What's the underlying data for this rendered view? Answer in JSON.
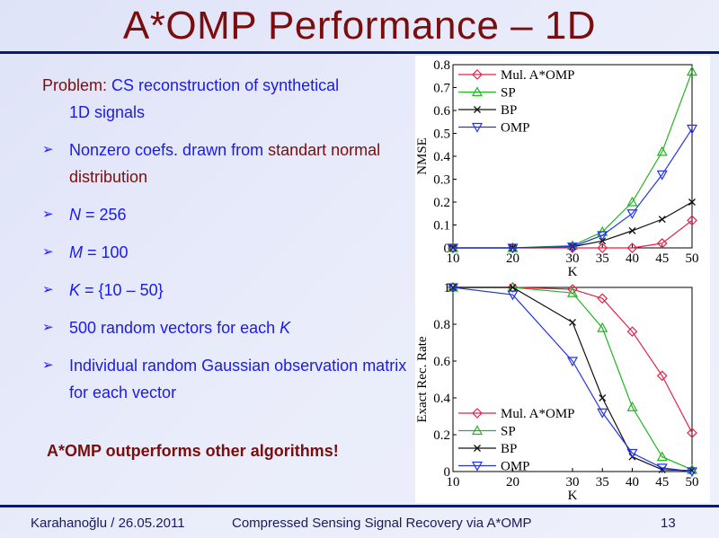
{
  "slide": {
    "title": "A*OMP Performance – 1D",
    "problem": [
      {
        "text": "Problem: ",
        "color": "#7a0e0e"
      },
      {
        "text": "CS reconstruction of synthetical",
        "color": "#1a1aee"
      },
      {
        "text": "1D signals",
        "color": "#1a1aee",
        "line2": true
      }
    ],
    "bullets": [
      {
        "segments": [
          {
            "text": "Nonzero coefs. drawn from ",
            "color": "#1a1aee"
          },
          {
            "text": "standart normal distribution",
            "color": "#7a0e0e"
          }
        ]
      },
      {
        "segments": [
          {
            "text": "N",
            "color": "#1a1aee",
            "italic": true
          },
          {
            "text": " = 256",
            "color": "#1a1aee"
          }
        ]
      },
      {
        "segments": [
          {
            "text": "M",
            "color": "#1a1aee",
            "italic": true
          },
          {
            "text": " = 100",
            "color": "#1a1aee"
          }
        ]
      },
      {
        "segments": [
          {
            "text": "K",
            "color": "#1a1aee",
            "italic": true
          },
          {
            "text": " = {10 – 50}",
            "color": "#1a1aee"
          }
        ]
      },
      {
        "segments": [
          {
            "text": "500 random vectors for each ",
            "color": "#1a1aee"
          },
          {
            "text": "K",
            "color": "#1a1aee",
            "italic": true
          }
        ]
      },
      {
        "segments": [
          {
            "text": "Individual random Gaussian observation matrix for each vector",
            "color": "#1a1aee"
          }
        ]
      }
    ],
    "bullet_icon": "arrowhead-bullet-icon",
    "conclusion": "A*OMP outperforms other algorithms!",
    "footer": {
      "author_date": "Karahanoğlu / 26.05.2011",
      "talk_title": "Compressed Sensing Signal Recovery via A*OMP",
      "page": "13"
    }
  },
  "chart_data": [
    {
      "type": "line",
      "xlabel": "K",
      "ylabel": "NMSE",
      "x": [
        10,
        20,
        30,
        35,
        40,
        45,
        50
      ],
      "xticks": [
        10,
        20,
        30,
        35,
        40,
        45,
        50
      ],
      "yticks": [
        "0",
        "0.1",
        "0.2",
        "0.3",
        "0.4",
        "0.5",
        "0.6",
        "0.7",
        "0.8"
      ],
      "xlim": [
        10,
        50
      ],
      "ylim": [
        0,
        0.8
      ],
      "grid": false,
      "legend": "top-left",
      "series": [
        {
          "name": "Mul. A*OMP",
          "color": "#e8204a",
          "marker": "diamond",
          "values": [
            0,
            0,
            0,
            0,
            0,
            0.02,
            0.12
          ]
        },
        {
          "name": "SP",
          "color": "#22b422",
          "marker": "triangle-up",
          "values": [
            0,
            0,
            0.01,
            0.07,
            0.2,
            0.42,
            0.77
          ]
        },
        {
          "name": "BP",
          "color": "#111111",
          "marker": "x",
          "values": [
            0,
            0,
            0.005,
            0.03,
            0.075,
            0.125,
            0.2
          ]
        },
        {
          "name": "OMP",
          "color": "#2233ee",
          "marker": "triangle-down",
          "values": [
            0,
            0,
            0.005,
            0.055,
            0.15,
            0.32,
            0.52
          ]
        }
      ]
    },
    {
      "type": "line",
      "xlabel": "K",
      "ylabel": "Exact Rec. Rate",
      "x": [
        10,
        20,
        30,
        35,
        40,
        45,
        50
      ],
      "xticks": [
        10,
        20,
        30,
        35,
        40,
        45,
        50
      ],
      "yticks": [
        "0",
        "0.2",
        "0.4",
        "0.6",
        "0.8",
        "1"
      ],
      "xlim": [
        10,
        50
      ],
      "ylim": [
        0,
        1
      ],
      "grid": false,
      "legend": "bottom-left",
      "series": [
        {
          "name": "Mul. A*OMP",
          "color": "#e8204a",
          "marker": "diamond",
          "values": [
            1,
            1,
            0.99,
            0.94,
            0.76,
            0.52,
            0.21
          ]
        },
        {
          "name": "SP",
          "color": "#22b422",
          "marker": "triangle-up",
          "values": [
            1,
            1,
            0.97,
            0.78,
            0.35,
            0.08,
            0.01
          ]
        },
        {
          "name": "BP",
          "color": "#111111",
          "marker": "x",
          "values": [
            1,
            1,
            0.81,
            0.4,
            0.08,
            0.01,
            0.005
          ]
        },
        {
          "name": "OMP",
          "color": "#2233ee",
          "marker": "triangle-down",
          "values": [
            1,
            0.96,
            0.6,
            0.32,
            0.1,
            0.02,
            0
          ]
        }
      ]
    }
  ]
}
